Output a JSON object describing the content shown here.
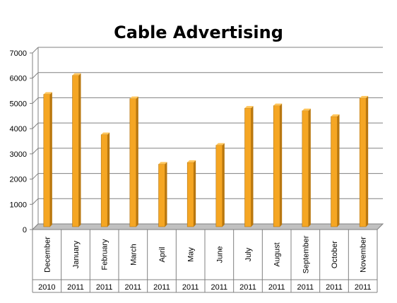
{
  "chart_data": {
    "type": "bar",
    "title": "Cable Advertising",
    "categories": [
      "December",
      "January",
      "February",
      "March",
      "April",
      "May",
      "June",
      "July",
      "August",
      "September",
      "October",
      "November"
    ],
    "years": [
      "2010",
      "2011",
      "2011",
      "2011",
      "2011",
      "2011",
      "2011",
      "2011",
      "2011",
      "2011",
      "2011",
      "2011"
    ],
    "values": [
      5250,
      6000,
      3650,
      5080,
      2480,
      2550,
      3230,
      4700,
      4800,
      4600,
      4370,
      5100
    ],
    "ylim": [
      0,
      7000
    ],
    "yticks": [
      "0",
      "1000",
      "2000",
      "3000",
      "4000",
      "5000",
      "6000",
      "7000"
    ],
    "grid": true,
    "legend": "none",
    "colors": {
      "bar_front": "#f5a623",
      "bar_side": "#b9770e",
      "bar_top": "#ffc65c",
      "grid": "#808080",
      "floor": "#c0c0c0"
    }
  }
}
